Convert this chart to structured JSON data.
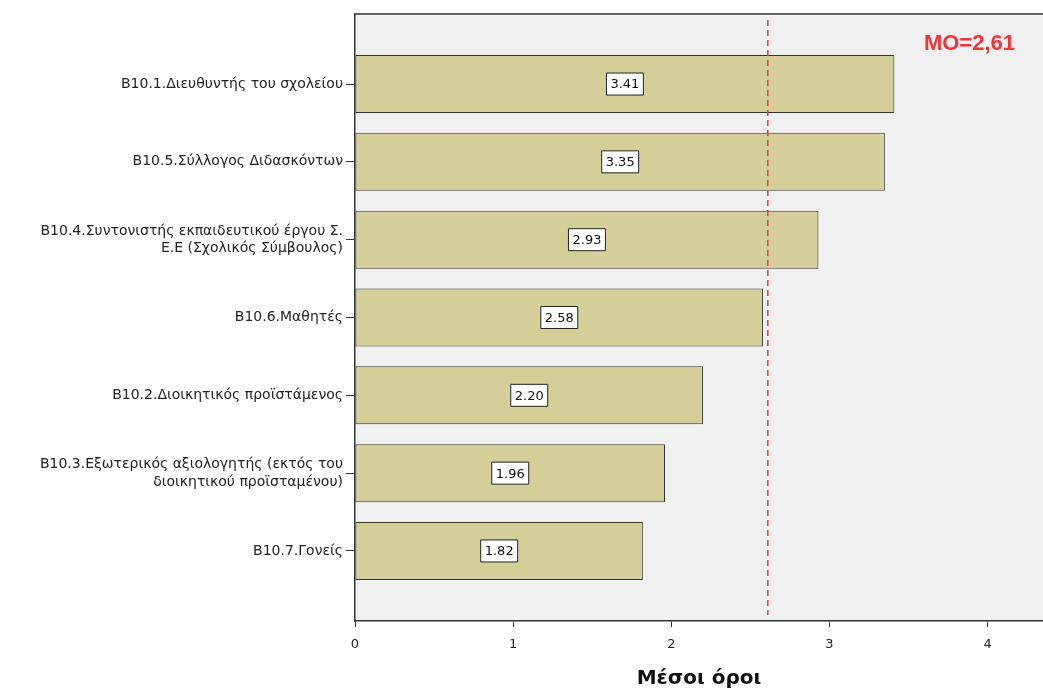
{
  "chart_data": {
    "type": "bar",
    "orientation": "horizontal",
    "xlabel": "Μέσοι όροι",
    "categories": [
      "B10.1.Διευθυντής του σχολείου",
      "B10.5.Σύλλογος Διδασκόντων",
      "B10.4.Συντονιστής εκπαιδευτικού έργου Σ. Ε.Ε (Σχολικός Σύμβουλος)",
      "B10.6.Μαθητές",
      "B10.2.Διοικητικός προϊστάμενος",
      "B10.3.Εξωτερικός αξιολογητής (εκτός του διοικητικού προϊσταμένου)",
      "B10.7.Γονείς"
    ],
    "values": [
      3.41,
      3.35,
      2.93,
      2.58,
      2.2,
      1.96,
      1.82
    ],
    "value_labels": [
      "3.41",
      "3.35",
      "2.93",
      "2.58",
      "2.20",
      "1.96",
      "1.82"
    ],
    "color": "#d4cf99",
    "xlim": [
      0,
      4.35
    ],
    "xticks": [
      0,
      1,
      2,
      3,
      4
    ],
    "ref_lines": [
      {
        "axis": "x",
        "value": 2.61,
        "label": "MO=2,61",
        "color": "#e8383d",
        "line_style": "dashed"
      }
    ]
  }
}
